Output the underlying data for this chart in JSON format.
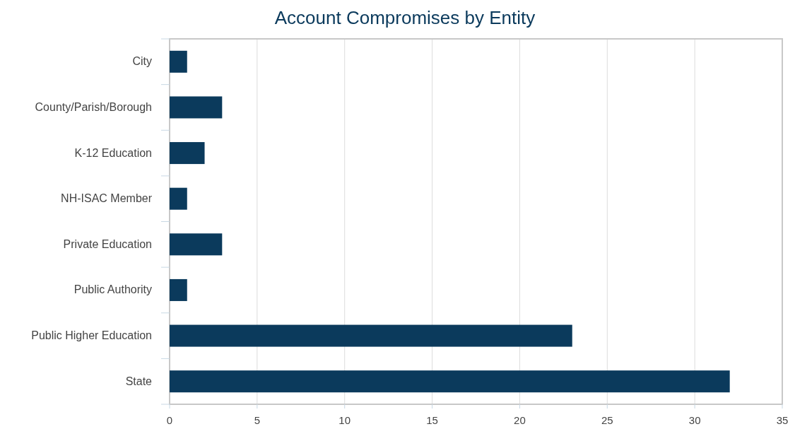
{
  "chart_data": {
    "type": "bar",
    "orientation": "horizontal",
    "title": "Account Compromises by Entity",
    "categories": [
      "City",
      "County/Parish/Borough",
      "K-12 Education",
      "NH-ISAC Member",
      "Private Education",
      "Public Authority",
      "Public Higher Education",
      "State"
    ],
    "values": [
      1,
      3,
      2,
      1,
      3,
      1,
      23,
      32
    ],
    "color": "#0b3a5c",
    "xlim": [
      0,
      35
    ],
    "xticks": [
      0,
      5,
      10,
      15,
      20,
      25,
      30,
      35
    ],
    "grid": "x"
  }
}
